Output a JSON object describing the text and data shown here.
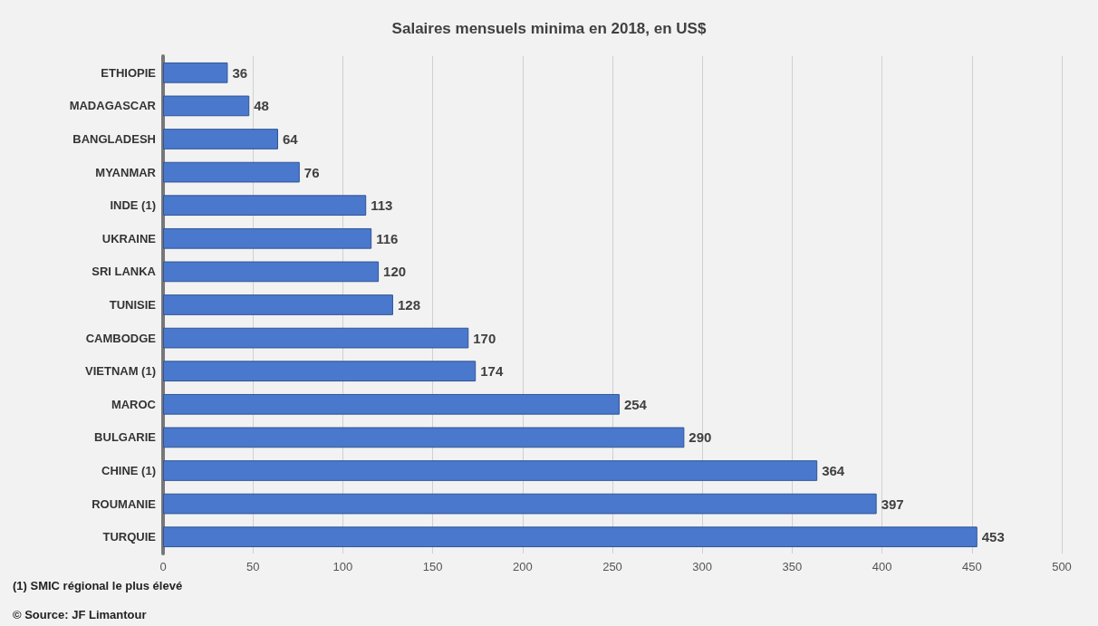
{
  "chart_data": {
    "type": "bar",
    "orientation": "horizontal",
    "title": "Salaires mensuels minima en 2018, en US$",
    "categories": [
      "ETHIOPIE",
      "MADAGASCAR",
      "BANGLADESH",
      "MYANMAR",
      "INDE (1)",
      "UKRAINE",
      "SRI LANKA",
      "TUNISIE",
      "CAMBODGE",
      "VIETNAM (1)",
      "MAROC",
      "BULGARIE",
      "CHINE (1)",
      "ROUMANIE",
      "TURQUIE"
    ],
    "values": [
      36,
      48,
      64,
      76,
      113,
      116,
      120,
      128,
      170,
      174,
      254,
      290,
      364,
      397,
      453
    ],
    "color": "#4a78cc",
    "xlim": [
      0,
      500
    ],
    "xticks": [
      0,
      50,
      100,
      150,
      200,
      250,
      300,
      350,
      400,
      450,
      500
    ],
    "grid": "x",
    "data_labels": true,
    "annotations": [
      "(1) SMIC régional le plus élevé",
      "© Source: JF Limantour"
    ]
  }
}
